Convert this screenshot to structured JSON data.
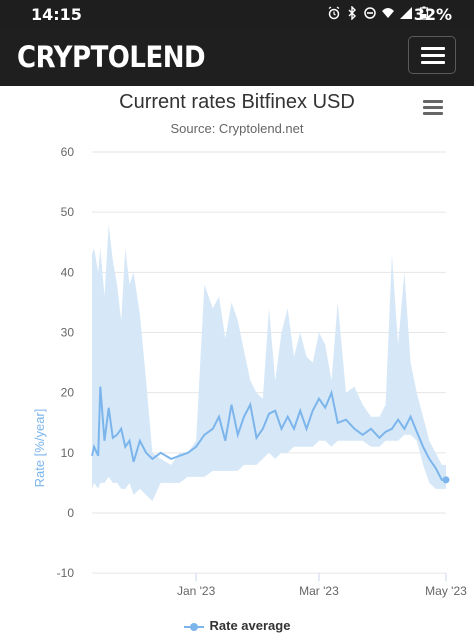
{
  "status_bar": {
    "time": "14:15",
    "battery": "32%",
    "icons": [
      "alarm-icon",
      "bluetooth-icon",
      "do-not-disturb-icon",
      "wifi-icon",
      "signal-icon",
      "battery-icon"
    ]
  },
  "navbar": {
    "logo": "CRYPTOLEND",
    "menu_icon": "hamburger-icon"
  },
  "chart": {
    "title": "Current rates Bitfinex USD",
    "subtitle": "Source: Cryptolend.net",
    "menu_icon": "hamburger-icon",
    "legend_label": "Rate average"
  },
  "colors": {
    "series_line": "#7cb5ec",
    "range_fill": "#d6e8f8",
    "axis_label": "#7cb5ec",
    "navbar_bg": "#1f1f1f"
  },
  "chart_data": {
    "type": "area",
    "title": "Current rates Bitfinex USD",
    "subtitle": "Source: Cryptolend.net",
    "xlabel": "",
    "ylabel": "Rate [%/year]",
    "ylim": [
      -10,
      60
    ],
    "yticks": [
      60,
      50,
      40,
      30,
      20,
      10,
      0,
      -10
    ],
    "xticks": [
      "Jan '23",
      "Mar '23",
      "May '23"
    ],
    "x_tick_dates": [
      "2023-01-01",
      "2023-03-01",
      "2023-05-01"
    ],
    "x_range": [
      "2022-11-12",
      "2023-05-01"
    ],
    "grid": true,
    "legend_position": "bottom-center",
    "series": [
      {
        "name": "Rate average",
        "x": [
          "2022-11-12",
          "2022-11-13",
          "2022-11-15",
          "2022-11-16",
          "2022-11-18",
          "2022-11-20",
          "2022-11-22",
          "2022-11-24",
          "2022-11-26",
          "2022-11-28",
          "2022-11-30",
          "2022-12-02",
          "2022-12-05",
          "2022-12-08",
          "2022-12-11",
          "2022-12-15",
          "2022-12-20",
          "2022-12-24",
          "2022-12-28",
          "2023-01-01",
          "2023-01-05",
          "2023-01-09",
          "2023-01-12",
          "2023-01-15",
          "2023-01-18",
          "2023-01-21",
          "2023-01-24",
          "2023-01-27",
          "2023-01-30",
          "2023-02-02",
          "2023-02-05",
          "2023-02-08",
          "2023-02-11",
          "2023-02-14",
          "2023-02-17",
          "2023-02-20",
          "2023-02-23",
          "2023-02-26",
          "2023-03-01",
          "2023-03-04",
          "2023-03-07",
          "2023-03-10",
          "2023-03-14",
          "2023-03-18",
          "2023-03-22",
          "2023-03-26",
          "2023-03-30",
          "2023-04-02",
          "2023-04-05",
          "2023-04-08",
          "2023-04-11",
          "2023-04-14",
          "2023-04-17",
          "2023-04-20",
          "2023-04-23",
          "2023-04-26",
          "2023-04-29",
          "2023-05-01"
        ],
        "values": [
          9.5,
          11,
          9.5,
          21,
          12,
          17.5,
          12.5,
          13,
          14,
          11,
          12,
          8.5,
          12,
          10,
          9,
          10,
          9,
          9.5,
          10,
          11,
          13,
          14,
          16,
          12,
          18,
          13,
          16,
          18,
          12.5,
          14,
          16.5,
          17,
          14,
          16,
          14,
          17,
          14,
          17,
          19,
          17.5,
          20,
          15,
          15.5,
          14,
          13,
          14,
          12.5,
          13.5,
          14,
          15.5,
          14,
          16,
          13.5,
          11,
          9,
          7.5,
          5.5,
          5.5
        ]
      },
      {
        "name": "",
        "x": [
          "2022-11-12",
          "2022-11-13",
          "2022-11-15",
          "2022-11-16",
          "2022-11-18",
          "2022-11-20",
          "2022-11-22",
          "2022-11-24",
          "2022-11-26",
          "2022-11-28",
          "2022-11-30",
          "2022-12-02",
          "2022-12-05",
          "2022-12-08",
          "2022-12-11",
          "2022-12-15",
          "2022-12-20",
          "2022-12-24",
          "2022-12-28",
          "2023-01-01",
          "2023-01-05",
          "2023-01-09",
          "2023-01-12",
          "2023-01-15",
          "2023-01-18",
          "2023-01-21",
          "2023-01-24",
          "2023-01-27",
          "2023-01-30",
          "2023-02-02",
          "2023-02-05",
          "2023-02-08",
          "2023-02-11",
          "2023-02-14",
          "2023-02-17",
          "2023-02-20",
          "2023-02-23",
          "2023-02-26",
          "2023-03-01",
          "2023-03-04",
          "2023-03-07",
          "2023-03-10",
          "2023-03-14",
          "2023-03-18",
          "2023-03-22",
          "2023-03-26",
          "2023-03-30",
          "2023-04-02",
          "2023-04-05",
          "2023-04-08",
          "2023-04-11",
          "2023-04-14",
          "2023-04-17",
          "2023-04-20",
          "2023-04-23",
          "2023-04-26",
          "2023-04-29",
          "2023-05-01"
        ],
        "high": [
          43,
          44,
          40,
          44,
          36,
          48,
          42,
          38,
          32,
          44,
          38,
          40,
          33,
          22,
          10,
          9,
          8,
          10,
          10,
          12,
          38,
          34,
          36,
          29,
          35,
          32,
          27,
          22,
          20,
          19,
          34,
          22,
          30,
          34,
          26,
          30,
          26,
          25,
          30,
          28,
          22,
          35,
          20,
          21,
          18,
          16,
          16,
          18,
          43,
          28,
          40,
          25,
          20,
          16,
          12,
          10,
          8,
          8
        ],
        "low": [
          4,
          5,
          4,
          5,
          5,
          6,
          5,
          5,
          4,
          4,
          5,
          3,
          4,
          3,
          2,
          5,
          5,
          5,
          6,
          6,
          6,
          7,
          7,
          7,
          7,
          7,
          8,
          8,
          8,
          9,
          10,
          9,
          10,
          10,
          11,
          11,
          11,
          11,
          12,
          12,
          11,
          12,
          12,
          12,
          12,
          11,
          11,
          12,
          12,
          12,
          13,
          13,
          12,
          8,
          5,
          4,
          4,
          4
        ]
      }
    ]
  }
}
